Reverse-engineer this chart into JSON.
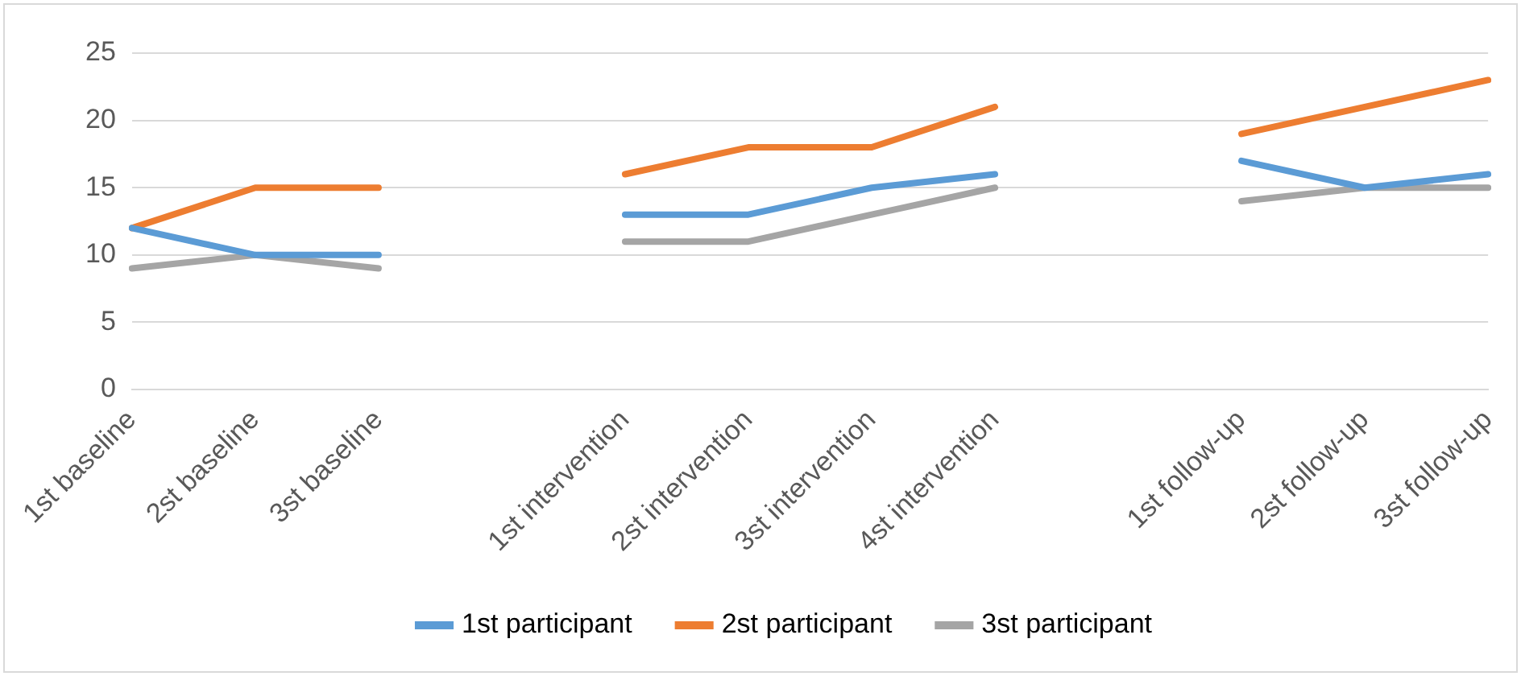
{
  "chart_data": {
    "type": "line",
    "categories": [
      "1st baseline",
      "2st baseline",
      "3st baseline",
      null,
      "1st intervention",
      "2st intervention",
      "3st intervention",
      "4st intervention",
      null,
      "1st follow-up",
      "2st follow-up",
      "3st follow-up"
    ],
    "series": [
      {
        "name": "1st participant",
        "color": "#5b9bd5",
        "values": [
          12,
          10,
          10,
          null,
          13,
          13,
          15,
          16,
          null,
          17,
          15,
          16
        ]
      },
      {
        "name": "2st participant",
        "color": "#ed7d31",
        "values": [
          12,
          15,
          15,
          null,
          16,
          18,
          18,
          21,
          null,
          19,
          21,
          23
        ]
      },
      {
        "name": "3st participant",
        "color": "#a5a5a5",
        "values": [
          9,
          10,
          9,
          null,
          11,
          11,
          13,
          15,
          null,
          14,
          15,
          15
        ]
      }
    ],
    "ylim": [
      0,
      25
    ],
    "yticks": [
      0,
      5,
      10,
      15,
      20,
      25
    ],
    "grid": "y",
    "legend": "bottom",
    "marker": "none",
    "line_style": "solid"
  }
}
